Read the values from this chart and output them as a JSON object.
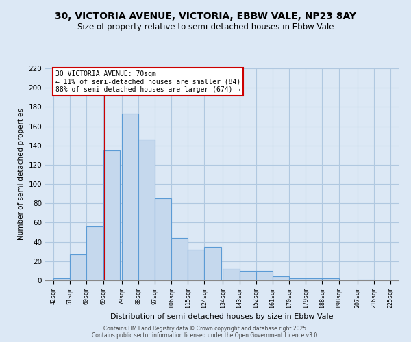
{
  "title": "30, VICTORIA AVENUE, VICTORIA, EBBW VALE, NP23 8AY",
  "subtitle": "Size of property relative to semi-detached houses in Ebbw Vale",
  "xlabel": "Distribution of semi-detached houses by size in Ebbw Vale",
  "ylabel": "Number of semi-detached properties",
  "bar_left_edges": [
    42,
    51,
    60,
    69,
    79,
    88,
    97,
    106,
    115,
    124,
    134,
    143,
    152,
    161,
    170,
    179,
    188,
    197,
    207,
    216
  ],
  "bar_heights": [
    2,
    27,
    56,
    135,
    173,
    146,
    85,
    44,
    32,
    35,
    12,
    10,
    10,
    4,
    2,
    2,
    2,
    0,
    1,
    0
  ],
  "bin_width": 9,
  "bar_color": "#c5d8ed",
  "bar_edge_color": "#5b9bd5",
  "grid_color": "#c5d8ed",
  "vline_x": 70,
  "vline_color": "#cc0000",
  "annotation_title": "30 VICTORIA AVENUE: 70sqm",
  "annotation_line1": "← 11% of semi-detached houses are smaller (84)",
  "annotation_line2": "88% of semi-detached houses are larger (674) →",
  "annotation_box_color": "#ffffff",
  "annotation_box_edge": "#cc0000",
  "xtick_labels": [
    "42sqm",
    "51sqm",
    "60sqm",
    "69sqm",
    "79sqm",
    "88sqm",
    "97sqm",
    "106sqm",
    "115sqm",
    "124sqm",
    "134sqm",
    "143sqm",
    "152sqm",
    "161sqm",
    "170sqm",
    "179sqm",
    "188sqm",
    "198sqm",
    "207sqm",
    "216sqm",
    "225sqm"
  ],
  "ylim": [
    0,
    220
  ],
  "yticks": [
    0,
    20,
    40,
    60,
    80,
    100,
    120,
    140,
    160,
    180,
    200,
    220
  ],
  "footer1": "Contains HM Land Registry data © Crown copyright and database right 2025.",
  "footer2": "Contains public sector information licensed under the Open Government Licence v3.0.",
  "background_color": "#dce8f5",
  "plot_bg_color": "#dce8f5",
  "title_fontsize": 10,
  "subtitle_fontsize": 8.5
}
